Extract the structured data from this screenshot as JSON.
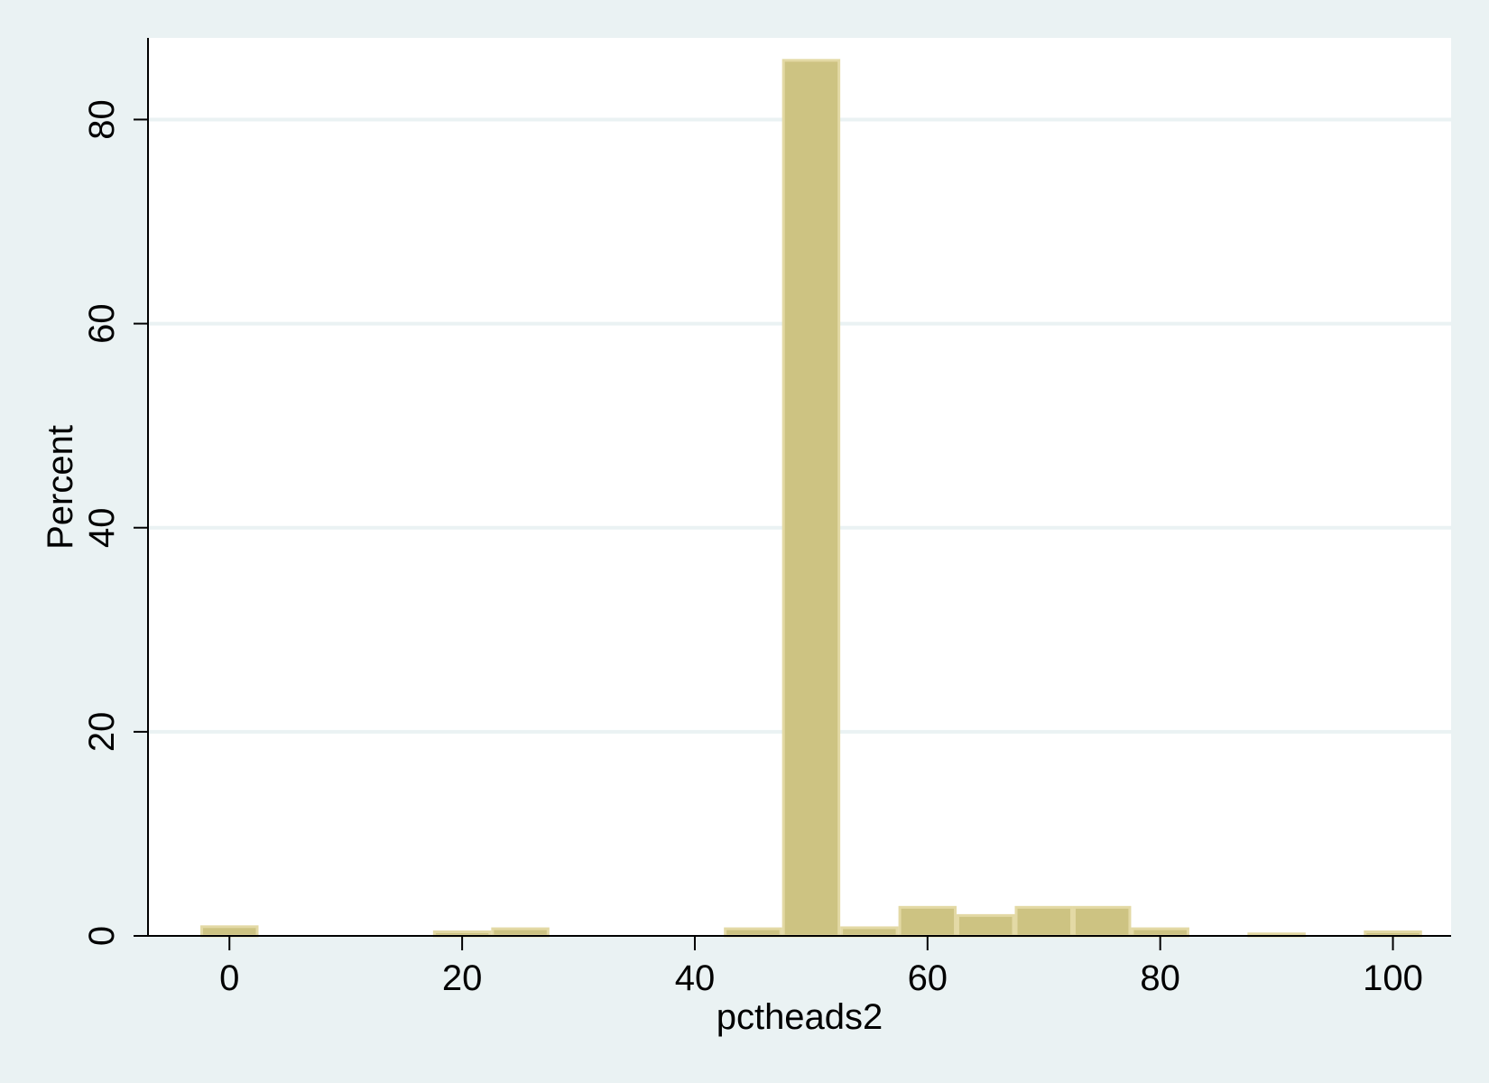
{
  "chart_data": {
    "type": "bar",
    "subtype": "histogram",
    "xlabel": "pctheads2",
    "ylabel": "Percent",
    "xlim": [
      -7,
      105
    ],
    "ylim": [
      0,
      88
    ],
    "xticks": [
      0,
      20,
      40,
      60,
      80,
      100
    ],
    "yticks": [
      0,
      20,
      40,
      60,
      80
    ],
    "grid": true,
    "bin_width": 5,
    "bins": [
      {
        "x": 0,
        "value": 0.9
      },
      {
        "x": 20,
        "value": 0.4
      },
      {
        "x": 25,
        "value": 0.7
      },
      {
        "x": 45,
        "value": 0.7
      },
      {
        "x": 50,
        "value": 85.8
      },
      {
        "x": 55,
        "value": 0.8
      },
      {
        "x": 60,
        "value": 2.8
      },
      {
        "x": 65,
        "value": 2.0
      },
      {
        "x": 70,
        "value": 2.8
      },
      {
        "x": 75,
        "value": 2.8
      },
      {
        "x": 80,
        "value": 0.7
      },
      {
        "x": 90,
        "value": 0.2
      },
      {
        "x": 100,
        "value": 0.4
      }
    ],
    "colors": {
      "bar_fill": "#cdc382",
      "bar_edge": "#e3d9a5",
      "plot_bg": "#ffffff",
      "outer_bg": "#eaf2f3",
      "grid": "#eaf2f3"
    }
  }
}
